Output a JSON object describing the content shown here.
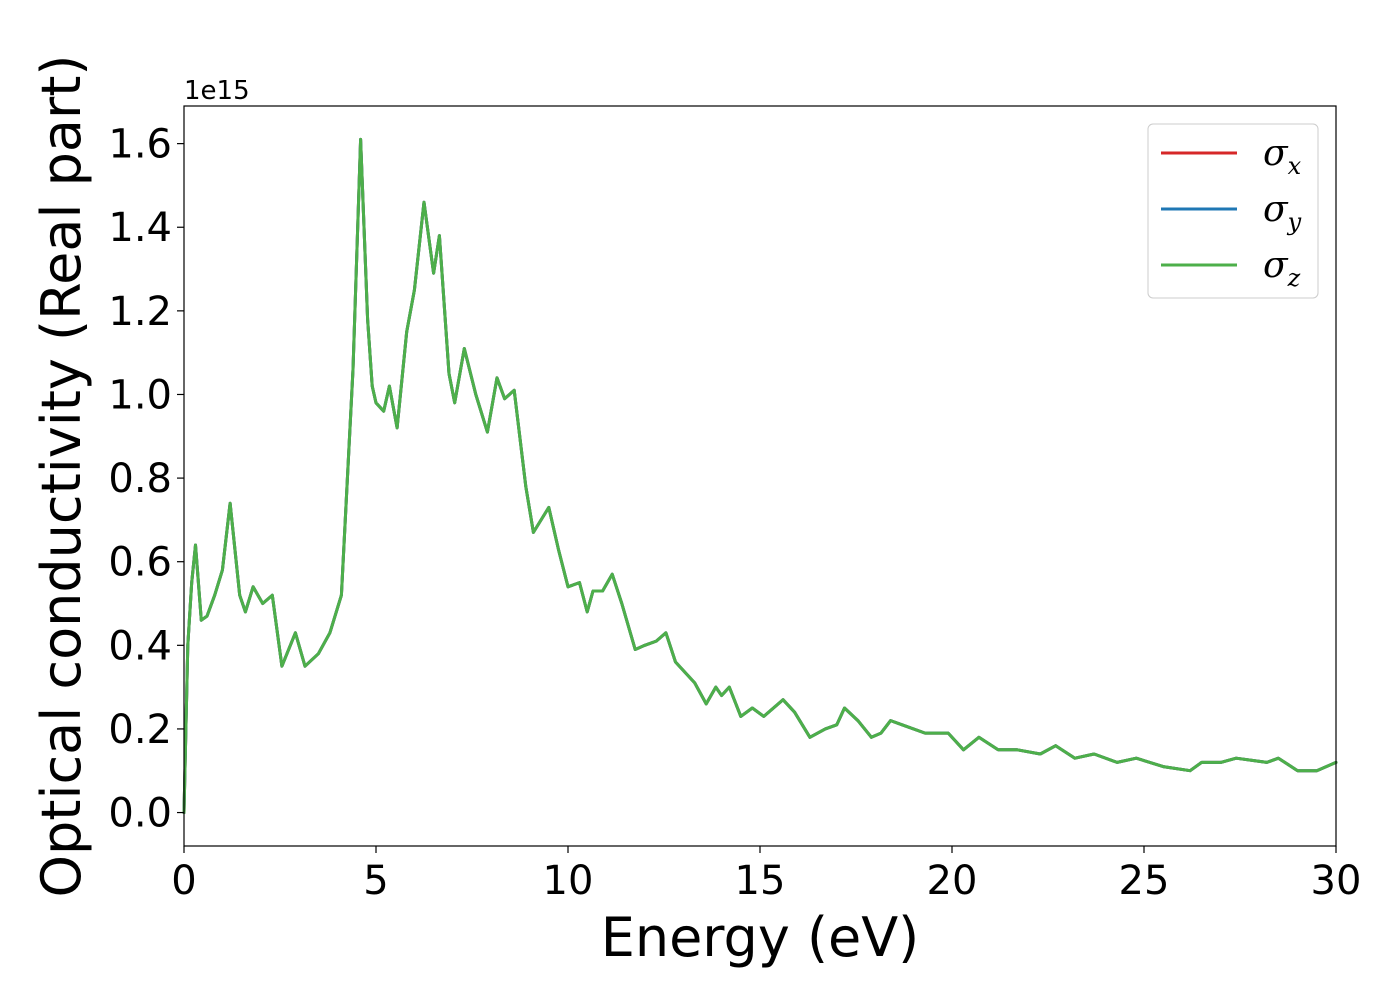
{
  "chart_data": {
    "type": "line",
    "title": "",
    "xlabel": "Energy (eV)",
    "ylabel": "Optical conductivity (Real part)",
    "y_offset_label": "1e15",
    "xlim": [
      0,
      30
    ],
    "ylim": [
      -0.08,
      1.69
    ],
    "x_ticks": [
      0,
      5,
      10,
      15,
      20,
      25,
      30
    ],
    "x_tick_labels": [
      "0",
      "5",
      "10",
      "15",
      "20",
      "25",
      "30"
    ],
    "y_ticks": [
      0.0,
      0.2,
      0.4,
      0.6,
      0.8,
      1.0,
      1.2,
      1.4,
      1.6
    ],
    "y_tick_labels": [
      "0.0",
      "0.2",
      "0.4",
      "0.6",
      "0.8",
      "1.0",
      "1.2",
      "1.4",
      "1.6"
    ],
    "grid": false,
    "legend_position": "top-right",
    "legend": [
      {
        "symbol": "σ",
        "subscript": "x",
        "color": "#d62728"
      },
      {
        "symbol": "σ",
        "subscript": "y",
        "color": "#1f77b4"
      },
      {
        "symbol": "σ",
        "subscript": "z",
        "color": "#4daf4a"
      }
    ],
    "x": [
      0,
      0.1,
      0.2,
      0.3,
      0.45,
      0.6,
      0.8,
      1.0,
      1.2,
      1.45,
      1.6,
      1.8,
      2.05,
      2.3,
      2.55,
      2.9,
      3.15,
      3.5,
      3.8,
      4.1,
      4.4,
      4.6,
      4.78,
      4.9,
      5.0,
      5.2,
      5.35,
      5.55,
      5.8,
      6.0,
      6.25,
      6.5,
      6.65,
      6.9,
      7.05,
      7.3,
      7.6,
      7.9,
      8.15,
      8.35,
      8.6,
      8.9,
      9.1,
      9.5,
      9.75,
      10.0,
      10.3,
      10.5,
      10.65,
      10.9,
      11.15,
      11.4,
      11.75,
      12.0,
      12.3,
      12.55,
      12.8,
      13.3,
      13.6,
      13.85,
      14.0,
      14.2,
      14.5,
      14.8,
      15.1,
      15.6,
      15.9,
      16.3,
      16.7,
      17.0,
      17.2,
      17.55,
      17.9,
      18.15,
      18.4,
      18.7,
      19.3,
      19.9,
      20.3,
      20.7,
      21.2,
      21.7,
      22.3,
      22.7,
      23.2,
      23.7,
      24.3,
      24.8,
      25.5,
      26.2,
      26.5,
      27.0,
      27.4,
      28.2,
      28.5,
      29.0,
      29.5,
      30.0
    ],
    "series": [
      {
        "name": "σx",
        "color": "#d62728",
        "values": [
          0.0,
          0.4,
          0.55,
          0.64,
          0.46,
          0.47,
          0.52,
          0.58,
          0.74,
          0.52,
          0.48,
          0.54,
          0.5,
          0.52,
          0.35,
          0.43,
          0.35,
          0.38,
          0.43,
          0.52,
          1.06,
          1.61,
          1.18,
          1.02,
          0.98,
          0.96,
          1.02,
          0.92,
          1.15,
          1.25,
          1.46,
          1.29,
          1.38,
          1.05,
          0.98,
          1.11,
          1.0,
          0.91,
          1.04,
          0.99,
          1.01,
          0.78,
          0.67,
          0.73,
          0.63,
          0.54,
          0.55,
          0.48,
          0.53,
          0.53,
          0.57,
          0.5,
          0.39,
          0.4,
          0.41,
          0.43,
          0.36,
          0.31,
          0.26,
          0.3,
          0.28,
          0.3,
          0.23,
          0.25,
          0.23,
          0.27,
          0.24,
          0.18,
          0.2,
          0.21,
          0.25,
          0.22,
          0.18,
          0.19,
          0.22,
          0.21,
          0.19,
          0.19,
          0.15,
          0.18,
          0.15,
          0.15,
          0.14,
          0.16,
          0.13,
          0.14,
          0.12,
          0.13,
          0.11,
          0.1,
          0.12,
          0.12,
          0.13,
          0.12,
          0.13,
          0.1,
          0.1,
          0.12
        ]
      },
      {
        "name": "σy",
        "color": "#1f77b4",
        "values": [
          0.0,
          0.4,
          0.55,
          0.64,
          0.46,
          0.47,
          0.52,
          0.58,
          0.74,
          0.52,
          0.48,
          0.54,
          0.5,
          0.52,
          0.35,
          0.43,
          0.35,
          0.38,
          0.43,
          0.52,
          1.06,
          1.61,
          1.18,
          1.02,
          0.98,
          0.96,
          1.02,
          0.92,
          1.15,
          1.25,
          1.46,
          1.29,
          1.38,
          1.05,
          0.98,
          1.11,
          1.0,
          0.91,
          1.04,
          0.99,
          1.01,
          0.78,
          0.67,
          0.73,
          0.63,
          0.54,
          0.55,
          0.48,
          0.53,
          0.53,
          0.57,
          0.5,
          0.39,
          0.4,
          0.41,
          0.43,
          0.36,
          0.31,
          0.26,
          0.3,
          0.28,
          0.3,
          0.23,
          0.25,
          0.23,
          0.27,
          0.24,
          0.18,
          0.2,
          0.21,
          0.25,
          0.22,
          0.18,
          0.19,
          0.22,
          0.21,
          0.19,
          0.19,
          0.15,
          0.18,
          0.15,
          0.15,
          0.14,
          0.16,
          0.13,
          0.14,
          0.12,
          0.13,
          0.11,
          0.1,
          0.12,
          0.12,
          0.13,
          0.12,
          0.13,
          0.1,
          0.1,
          0.12
        ]
      },
      {
        "name": "σz",
        "color": "#4daf4a",
        "values": [
          0.0,
          0.4,
          0.55,
          0.64,
          0.46,
          0.47,
          0.52,
          0.58,
          0.74,
          0.52,
          0.48,
          0.54,
          0.5,
          0.52,
          0.35,
          0.43,
          0.35,
          0.38,
          0.43,
          0.52,
          1.06,
          1.61,
          1.18,
          1.02,
          0.98,
          0.96,
          1.02,
          0.92,
          1.15,
          1.25,
          1.46,
          1.29,
          1.38,
          1.05,
          0.98,
          1.11,
          1.0,
          0.91,
          1.04,
          0.99,
          1.01,
          0.78,
          0.67,
          0.73,
          0.63,
          0.54,
          0.55,
          0.48,
          0.53,
          0.53,
          0.57,
          0.5,
          0.39,
          0.4,
          0.41,
          0.43,
          0.36,
          0.31,
          0.26,
          0.3,
          0.28,
          0.3,
          0.23,
          0.25,
          0.23,
          0.27,
          0.24,
          0.18,
          0.2,
          0.21,
          0.25,
          0.22,
          0.18,
          0.19,
          0.22,
          0.21,
          0.19,
          0.19,
          0.15,
          0.18,
          0.15,
          0.15,
          0.14,
          0.16,
          0.13,
          0.14,
          0.12,
          0.13,
          0.11,
          0.1,
          0.12,
          0.12,
          0.13,
          0.12,
          0.13,
          0.1,
          0.1,
          0.12
        ]
      }
    ]
  }
}
